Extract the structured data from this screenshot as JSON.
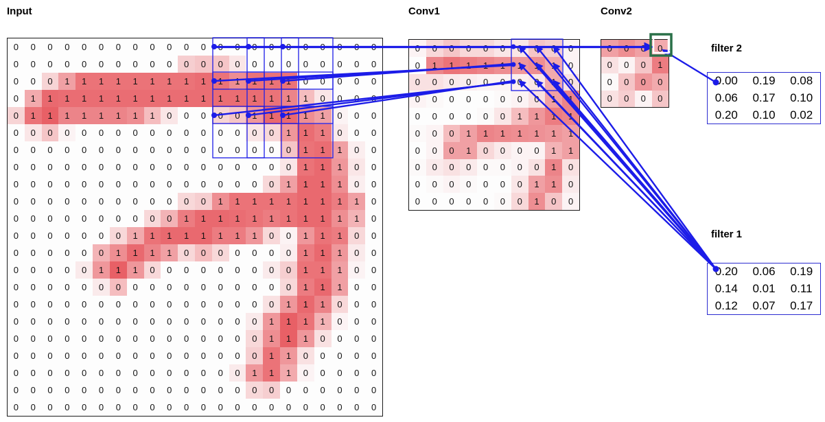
{
  "panels": {
    "input": {
      "title": "Input",
      "digits": [
        "0000000000000000000000",
        "0000000000000000000000",
        "0001111111111111100000",
        "0111111111111111110000",
        "0111111110000011111000",
        "0000000000000000111000",
        "0000000000000000011100",
        "0000000000000000011100",
        "0000000000000000111100",
        "0000000000001111111110",
        "0000000000111111111110",
        "0000000111111110011100",
        "0000001111000000011100",
        "0000011100000000011100",
        "0000000000000000011100",
        "0000000000000000111000",
        "0000000000000001111000",
        "0000000000000001110000",
        "0000000000000001100000",
        "0000000000000011100000",
        "0000000000000000000000",
        "0000000000000000000000"
      ],
      "shades": [
        [
          0,
          0,
          0,
          0,
          0,
          0,
          0,
          0,
          0,
          0,
          0,
          0,
          0,
          0,
          0,
          0,
          0,
          0,
          0,
          0,
          0,
          0
        ],
        [
          0,
          0,
          0,
          0,
          0,
          0,
          0,
          0,
          0,
          0,
          0.25,
          0.3,
          0.3,
          0.12,
          0,
          0,
          0,
          0,
          0,
          0,
          0,
          0
        ],
        [
          0,
          0,
          0.22,
          0.5,
          0.75,
          0.75,
          0.75,
          0.75,
          0.75,
          0.75,
          0.75,
          0.78,
          0.75,
          0.6,
          0.75,
          0.75,
          0.75,
          0,
          0,
          0,
          0,
          0
        ],
        [
          0,
          0.45,
          0.8,
          0.78,
          0.78,
          0.78,
          0.78,
          0.78,
          0.78,
          0.78,
          0.78,
          0.78,
          0.78,
          0.78,
          0.78,
          0.75,
          0.65,
          0.35,
          0.12,
          0,
          0,
          0
        ],
        [
          0.22,
          0.75,
          0.85,
          0.65,
          0.65,
          0.65,
          0.65,
          0.6,
          0.35,
          0.12,
          0,
          0,
          0.22,
          0.3,
          0.55,
          0.8,
          0.8,
          0.6,
          0.5,
          0.05,
          0,
          0
        ],
        [
          0,
          0.12,
          0.3,
          0.05,
          0,
          0,
          0,
          0,
          0,
          0,
          0,
          0,
          0,
          0,
          0.12,
          0.2,
          0.55,
          0.78,
          0.7,
          0.1,
          0,
          0
        ],
        [
          0,
          0,
          0,
          0,
          0,
          0,
          0,
          0,
          0,
          0,
          0,
          0,
          0,
          0,
          0,
          0,
          0.3,
          0.75,
          0.78,
          0.5,
          0.08,
          0
        ],
        [
          0,
          0,
          0,
          0,
          0,
          0,
          0,
          0,
          0,
          0,
          0,
          0,
          0,
          0,
          0,
          0,
          0.12,
          0.75,
          0.8,
          0.55,
          0.12,
          0
        ],
        [
          0,
          0,
          0,
          0,
          0,
          0,
          0,
          0,
          0,
          0,
          0,
          0,
          0,
          0,
          0,
          0.2,
          0.5,
          0.8,
          0.8,
          0.6,
          0.08,
          0
        ],
        [
          0,
          0,
          0,
          0,
          0,
          0,
          0,
          0,
          0,
          0,
          0.2,
          0.25,
          0.6,
          0.75,
          0.75,
          0.75,
          0.75,
          0.8,
          0.8,
          0.7,
          0.5,
          0
        ],
        [
          0,
          0,
          0,
          0,
          0,
          0,
          0,
          0,
          0.2,
          0.4,
          0.7,
          0.8,
          0.8,
          0.78,
          0.75,
          0.7,
          0.75,
          0.8,
          0.8,
          0.6,
          0.4,
          0
        ],
        [
          0,
          0,
          0,
          0,
          0,
          0,
          0.2,
          0.45,
          0.75,
          0.8,
          0.8,
          0.8,
          0.7,
          0.7,
          0.55,
          0.2,
          0.05,
          0.55,
          0.75,
          0.7,
          0.2,
          0
        ],
        [
          0,
          0,
          0,
          0,
          0,
          0.4,
          0.6,
          0.8,
          0.65,
          0.5,
          0.2,
          0.35,
          0.2,
          0,
          0,
          0,
          0.08,
          0.7,
          0.8,
          0.55,
          0.1,
          0
        ],
        [
          0,
          0,
          0,
          0,
          0.1,
          0.55,
          0.85,
          0.55,
          0.2,
          0,
          0,
          0,
          0,
          0,
          0,
          0.1,
          0.25,
          0.75,
          0.75,
          0.5,
          0.05,
          0
        ],
        [
          0,
          0,
          0,
          0,
          0,
          0.1,
          0.35,
          0,
          0,
          0,
          0,
          0,
          0,
          0,
          0,
          0,
          0.2,
          0.7,
          0.8,
          0.5,
          0,
          0
        ],
        [
          0,
          0,
          0,
          0,
          0,
          0,
          0,
          0,
          0,
          0,
          0,
          0,
          0,
          0,
          0,
          0.15,
          0.55,
          0.8,
          0.65,
          0.2,
          0,
          0
        ],
        [
          0,
          0,
          0,
          0,
          0,
          0,
          0,
          0,
          0,
          0,
          0,
          0,
          0,
          0,
          0.1,
          0.55,
          0.85,
          0.75,
          0.4,
          0.05,
          0,
          0
        ],
        [
          0,
          0,
          0,
          0,
          0,
          0,
          0,
          0,
          0,
          0,
          0,
          0,
          0,
          0,
          0.2,
          0.6,
          0.85,
          0.55,
          0.15,
          0,
          0,
          0
        ],
        [
          0,
          0,
          0,
          0,
          0,
          0,
          0,
          0,
          0,
          0,
          0,
          0,
          0,
          0,
          0.25,
          0.75,
          0.55,
          0.15,
          0,
          0,
          0,
          0
        ],
        [
          0,
          0,
          0,
          0,
          0,
          0,
          0,
          0,
          0,
          0,
          0,
          0,
          0,
          0.1,
          0.55,
          0.75,
          0.45,
          0.05,
          0,
          0,
          0,
          0
        ],
        [
          0,
          0,
          0,
          0,
          0,
          0,
          0,
          0,
          0,
          0,
          0,
          0,
          0,
          0,
          0.2,
          0.25,
          0,
          0,
          0,
          0,
          0,
          0
        ],
        [
          0,
          0,
          0,
          0,
          0,
          0,
          0,
          0,
          0,
          0,
          0,
          0,
          0,
          0,
          0,
          0,
          0,
          0,
          0,
          0,
          0,
          0
        ]
      ]
    },
    "conv1": {
      "title": "Conv1",
      "digits": [
        "0000000000",
        "0111111110",
        "0000000010",
        "0000000011",
        "0000001111",
        "0001111111",
        "0001000011",
        "0000000010",
        "0000000110",
        "0000000100"
      ],
      "shades": [
        [
          0.05,
          0.2,
          0.3,
          0.2,
          0.2,
          0.12,
          0.12,
          0.3,
          0.25,
          0.05
        ],
        [
          0,
          0.65,
          0.75,
          0.7,
          0.65,
          0.6,
          0.55,
          0.6,
          0.45,
          0.05
        ],
        [
          0.15,
          0.15,
          0.1,
          0.08,
          0.05,
          0.05,
          0.08,
          0.12,
          0.45,
          0.15
        ],
        [
          0.05,
          0.02,
          0,
          0,
          0,
          0.02,
          0.05,
          0.15,
          0.5,
          0.65
        ],
        [
          0,
          0,
          0,
          0,
          0.02,
          0.12,
          0.35,
          0.55,
          0.7,
          0.65
        ],
        [
          0.02,
          0.05,
          0.35,
          0.5,
          0.65,
          0.62,
          0.6,
          0.58,
          0.55,
          0.5
        ],
        [
          0,
          0.05,
          0.5,
          0.5,
          0.2,
          0.1,
          0.05,
          0.05,
          0.4,
          0.5
        ],
        [
          0.02,
          0.1,
          0.15,
          0.1,
          0.02,
          0.02,
          0.05,
          0.15,
          0.65,
          0.15
        ],
        [
          0,
          0.02,
          0.05,
          0.02,
          0,
          0,
          0.12,
          0.5,
          0.6,
          0.1
        ],
        [
          0,
          0,
          0,
          0,
          0,
          0.02,
          0.2,
          0.6,
          0.3,
          0.05
        ]
      ]
    },
    "conv2": {
      "title": "Conv2",
      "digits": [
        "0000",
        "0001",
        "0000",
        "0000"
      ],
      "shades": [
        [
          0.5,
          0.6,
          0.5,
          0.45
        ],
        [
          0.15,
          0.05,
          0.3,
          0.7
        ],
        [
          0.02,
          0.3,
          0.55,
          0.45
        ],
        [
          0.15,
          0.25,
          0.05,
          0.3
        ]
      ]
    },
    "filter2": {
      "title": "filter 2",
      "values": [
        [
          "0.00",
          "0.19",
          "0.08"
        ],
        [
          "0.06",
          "0.17",
          "0.10"
        ],
        [
          "0.20",
          "0.10",
          "0.02"
        ]
      ]
    },
    "filter1": {
      "title": "filter 1",
      "values": [
        [
          "0.20",
          "0.06",
          "0.19"
        ],
        [
          "0.14",
          "0.01",
          "0.11"
        ],
        [
          "0.12",
          "0.07",
          "0.17"
        ]
      ]
    }
  },
  "colors": {
    "cell_base_rgb": "228,68,75",
    "line_blue": "#1c1ce8",
    "box_blue": "#2b2bd0",
    "highlight_green": "#2a7048",
    "grid_border": "#1a1a1a",
    "text": "#000000"
  }
}
